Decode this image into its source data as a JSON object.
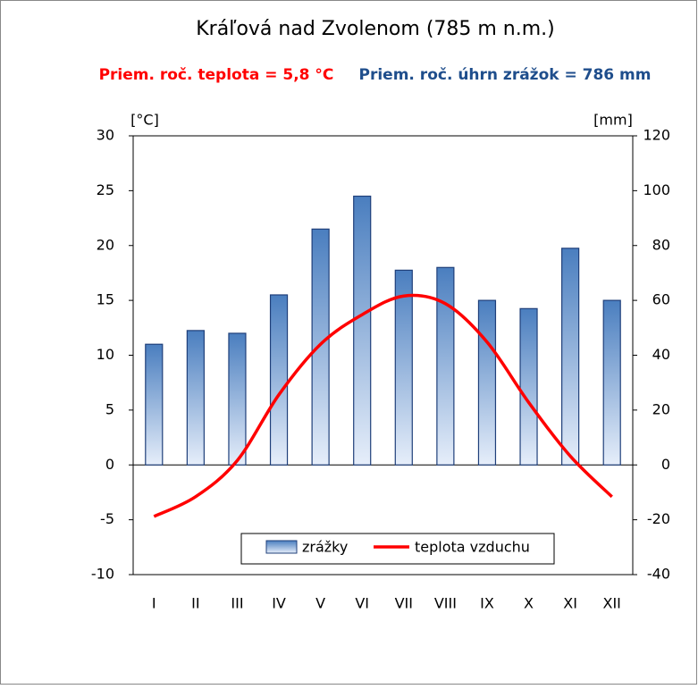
{
  "chart_data": {
    "type": "bar-line",
    "title": "Kráľová nad Zvolenom (785 m n.m.)",
    "subtitles": [
      {
        "text": "Priem. roč. teplota = 5,8 °C",
        "color": "#ff0000"
      },
      {
        "text": "Priem. roč. úhrn zrážok = 786 mm",
        "color": "#1f4e8c"
      }
    ],
    "y_label": "[°C]",
    "y2_label": "[mm]",
    "categories": [
      "I",
      "II",
      "III",
      "IV",
      "V",
      "VI",
      "VII",
      "VIII",
      "IX",
      "X",
      "XI",
      "XII"
    ],
    "series": [
      {
        "name": "zrážky",
        "type": "bar",
        "axis": "y2",
        "color": "#4a7ebf",
        "values": [
          44,
          49,
          48,
          62,
          86,
          98,
          71,
          72,
          60,
          57,
          79,
          60
        ]
      },
      {
        "name": "teplota vzduchu",
        "type": "line",
        "axis": "y",
        "color": "#ff0000",
        "values": [
          -4.7,
          -2.9,
          0.4,
          6.4,
          11.0,
          13.7,
          15.4,
          14.7,
          11.2,
          5.7,
          0.8,
          -2.9
        ]
      }
    ],
    "ylim": [
      -10,
      30
    ],
    "yticks": [
      -10,
      -5,
      0,
      5,
      10,
      15,
      20,
      25,
      30
    ],
    "y2lim": [
      -40,
      120
    ],
    "y2ticks": [
      -40,
      -20,
      0,
      20,
      40,
      60,
      80,
      100,
      120
    ],
    "legend": "bottom",
    "grid": false
  }
}
